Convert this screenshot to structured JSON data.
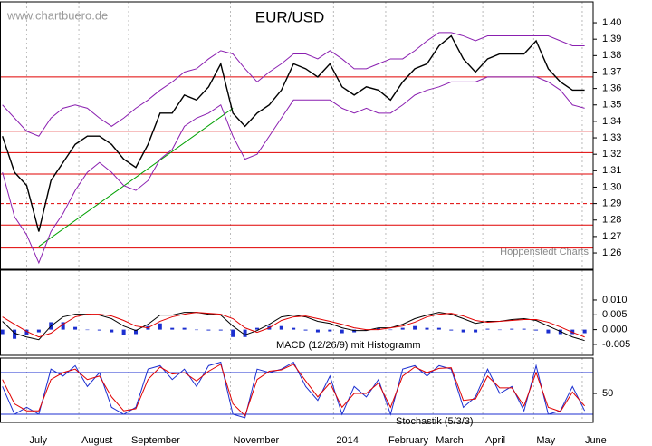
{
  "chart_data": [
    {
      "type": "line",
      "title": "EUR/USD",
      "source": "www.chartbuero.de",
      "credit": "Hoppenstedt Charts",
      "x": [
        0,
        1,
        2,
        3,
        4,
        5,
        6,
        7,
        8,
        9,
        10,
        11,
        12,
        13,
        14,
        15,
        16,
        17,
        18,
        19,
        20,
        21,
        22,
        23,
        24,
        25,
        26,
        27,
        28,
        29,
        30,
        31,
        32,
        33,
        34,
        35,
        36,
        37,
        38,
        39,
        40,
        41,
        42,
        43,
        44,
        45,
        46,
        47,
        48
      ],
      "xlim": [
        -0.2,
        48.7
      ],
      "ylim": [
        1.2501,
        1.4127
      ],
      "yticks": [
        {
          "value": 1.4,
          "label": "1.40"
        },
        1.39,
        1.38,
        1.37,
        1.36,
        1.35,
        1.34,
        1.33,
        1.32,
        1.31,
        {
          "value": 1.3,
          "label": "1.30"
        },
        1.29,
        1.28,
        1.27,
        1.26
      ],
      "series": [
        {
          "color": "#000000",
          "values": [
            1.331,
            1.309,
            1.301,
            1.273,
            1.304,
            1.315,
            1.326,
            1.331,
            1.331,
            1.326,
            1.317,
            1.312,
            1.326,
            1.345,
            1.345,
            1.356,
            1.353,
            1.361,
            1.375,
            1.345,
            1.337,
            1.345,
            1.35,
            1.359,
            1.375,
            1.372,
            1.367,
            1.375,
            1.361,
            1.356,
            1.361,
            1.359,
            1.353,
            1.364,
            1.372,
            1.375,
            1.386,
            1.392,
            1.378,
            1.37,
            1.378,
            1.381,
            1.381,
            1.381,
            1.389,
            1.372,
            1.364,
            1.359,
            1.359
          ]
        },
        {
          "color": "#8a1fb0",
          "values": [
            1.35,
            1.342,
            1.334,
            1.331,
            1.342,
            1.348,
            1.35,
            1.348,
            1.342,
            1.337,
            1.342,
            1.348,
            1.353,
            1.359,
            1.364,
            1.37,
            1.372,
            1.378,
            1.383,
            1.381,
            1.372,
            1.364,
            1.37,
            1.375,
            1.381,
            1.381,
            1.378,
            1.383,
            1.378,
            1.372,
            1.372,
            1.375,
            1.378,
            1.378,
            1.383,
            1.389,
            1.394,
            1.394,
            1.392,
            1.389,
            1.392,
            1.392,
            1.392,
            1.392,
            1.392,
            1.392,
            1.389,
            1.386,
            1.386
          ]
        },
        {
          "color": "#8a1fb0",
          "values": [
            1.309,
            1.282,
            1.271,
            1.254,
            1.273,
            1.284,
            1.298,
            1.309,
            1.315,
            1.309,
            1.301,
            1.298,
            1.304,
            1.317,
            1.323,
            1.337,
            1.342,
            1.345,
            1.35,
            1.331,
            1.317,
            1.32,
            1.331,
            1.342,
            1.353,
            1.353,
            1.353,
            1.353,
            1.348,
            1.345,
            1.348,
            1.345,
            1.345,
            1.35,
            1.356,
            1.359,
            1.361,
            1.364,
            1.364,
            1.364,
            1.367,
            1.367,
            1.367,
            1.367,
            1.367,
            1.364,
            1.359,
            1.35,
            1.348
          ]
        }
      ],
      "levels": [
        1.367,
        1.334,
        1.321,
        1.308,
        1.277,
        1.263
      ],
      "dashed_levels": [
        1.29
      ],
      "level_color": "#e00000",
      "trendline": {
        "x": [
          3,
          19
        ],
        "values": [
          1.264,
          1.348
        ],
        "color": "#00a000"
      }
    },
    {
      "type": "line",
      "title": "MACD (12/26/9) mit Histogramm",
      "ylim": [
        -0.0087,
        0.0201
      ],
      "yticks": [
        {
          "value": 0.01,
          "label": "0.010"
        },
        0.005,
        {
          "value": 0,
          "label": "0.000"
        },
        -0.005
      ],
      "series": [
        {
          "type": "bar",
          "color": "#1c2fd0",
          "values": [
            -0.0015,
            -0.0031,
            -0.0018,
            -0.0009,
            0.0025,
            0.0025,
            0.0009,
            0,
            -0.0003,
            -0.0009,
            -0.0018,
            -0.0015,
            0.0012,
            0.0021,
            0.0006,
            0.0006,
            0,
            -0.0003,
            -0.0003,
            -0.0025,
            -0.0025,
            0.0006,
            0.0012,
            0.0012,
            0.0006,
            -0.0003,
            -0.0009,
            -0.0006,
            -0.0012,
            -0.0009,
            -0.0003,
            0.0006,
            0,
            0.0006,
            0.0012,
            0.0006,
            0.0006,
            -0.0003,
            -0.0009,
            -0.0009,
            0.0003,
            0,
            0.0003,
            0.0003,
            -0.0003,
            -0.0012,
            -0.0015,
            -0.0015,
            -0.0012
          ]
        },
        {
          "color": "#000000",
          "values": [
            0.0028,
            -0.0012,
            -0.0025,
            -0.0034,
            0.0012,
            0.0043,
            0.0052,
            0.0052,
            0.0049,
            0.0037,
            0.0012,
            -0.0003,
            0.0018,
            0.0049,
            0.0049,
            0.0058,
            0.0058,
            0.0052,
            0.0049,
            0.0012,
            -0.0018,
            -0.0003,
            0.0018,
            0.0043,
            0.0049,
            0.0043,
            0.0028,
            0.0021,
            0.0006,
            -0.0003,
            -0.0003,
            0.0006,
            0.0006,
            0.0018,
            0.0037,
            0.0049,
            0.0058,
            0.0052,
            0.0037,
            0.0021,
            0.0028,
            0.0028,
            0.0034,
            0.0037,
            0.0031,
            0.0012,
            -0.0006,
            -0.0025,
            -0.0037
          ]
        },
        {
          "color": "#e00000",
          "values": [
            0.0043,
            0.0018,
            -0.0006,
            -0.0025,
            -0.0012,
            0.0018,
            0.0043,
            0.0052,
            0.0052,
            0.0046,
            0.0031,
            0.0012,
            0.0006,
            0.0028,
            0.0043,
            0.0052,
            0.0058,
            0.0055,
            0.0052,
            0.0037,
            0.0006,
            -0.0009,
            0.0006,
            0.0031,
            0.0043,
            0.0046,
            0.0037,
            0.0028,
            0.0018,
            0.0006,
            0,
            0,
            0.0006,
            0.0012,
            0.0025,
            0.0043,
            0.0052,
            0.0055,
            0.0046,
            0.0031,
            0.0025,
            0.0028,
            0.0031,
            0.0034,
            0.0034,
            0.0025,
            0.0009,
            -0.0009,
            -0.0025
          ]
        }
      ]
    },
    {
      "type": "line",
      "title": "Stochastik (5/3/3)",
      "ylim": [
        8.3,
        100.9
      ],
      "yticks": [
        50
      ],
      "levels": [
        20,
        80
      ],
      "level_color": "#1c2fd0",
      "xticks": [
        {
          "value": 2.0,
          "label": "July"
        },
        {
          "value": 6.3,
          "label": "August"
        },
        {
          "value": 10.4,
          "label": "September"
        },
        {
          "value": 18.8,
          "label": "November"
        },
        {
          "value": 27.3,
          "label": "2014"
        },
        {
          "value": 31.6,
          "label": "February"
        },
        {
          "value": 35.5,
          "label": "March"
        },
        {
          "value": 39.6,
          "label": "April"
        },
        {
          "value": 43.8,
          "label": "May"
        },
        {
          "value": 47.8,
          "label": "June"
        }
      ],
      "series": [
        {
          "color": "#1c2fd0",
          "values": [
            60,
            20,
            30,
            20,
            85,
            75,
            90,
            60,
            80,
            30,
            20,
            30,
            85,
            90,
            70,
            85,
            60,
            90,
            95,
            20,
            15,
            85,
            80,
            85,
            95,
            60,
            40,
            75,
            20,
            60,
            45,
            70,
            20,
            85,
            90,
            75,
            90,
            85,
            30,
            45,
            85,
            50,
            60,
            25,
            90,
            20,
            25,
            60,
            25
          ]
        },
        {
          "color": "#e00000",
          "values": [
            70,
            35,
            25,
            25,
            70,
            80,
            85,
            70,
            75,
            45,
            25,
            28,
            70,
            88,
            78,
            80,
            68,
            82,
            92,
            35,
            18,
            70,
            82,
            84,
            92,
            68,
            45,
            65,
            30,
            50,
            50,
            65,
            30,
            75,
            88,
            80,
            86,
            87,
            40,
            42,
            75,
            58,
            58,
            32,
            80,
            30,
            24,
            52,
            32
          ]
        }
      ]
    }
  ]
}
